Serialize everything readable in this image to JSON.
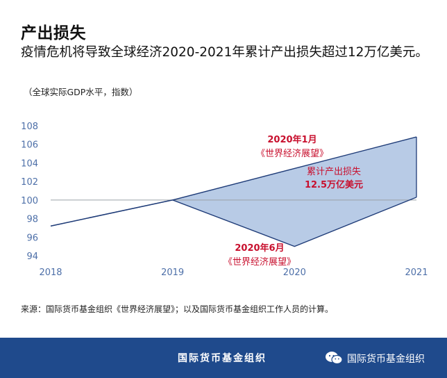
{
  "header": {
    "title": "产出损失",
    "subtitle": "疫情危机将导致全球经济2020-2021年累计产出损失超过12万亿美元。",
    "unit_note": "（全球实际GDP水平，指数）"
  },
  "chart_data": {
    "type": "line",
    "x": [
      2018,
      2019,
      2020,
      2021
    ],
    "ylim": [
      94,
      108
    ],
    "yticks": [
      94,
      96,
      98,
      100,
      102,
      104,
      106,
      108
    ],
    "xticks": [
      "2018",
      "2019",
      "2020",
      "2021"
    ],
    "reference_line": 100,
    "series": [
      {
        "name": "2020年1月《世界经济展望》",
        "values": [
          97.2,
          100.0,
          103.4,
          106.8
        ]
      },
      {
        "name": "2020年6月《世界经济展望》",
        "values": [
          97.2,
          100.0,
          95.0,
          100.3
        ]
      }
    ],
    "fill_between_from": 2019,
    "annotations": {
      "jan_line1": "2020年1月",
      "jan_line2": "《世界经济展望》",
      "jun_line1": "2020年6月",
      "jun_line2": "《世界经济展望》",
      "loss_line1": "累计产出损失",
      "loss_line2": "12.5万亿美元"
    },
    "colors": {
      "line": "#1f3c78",
      "fill": "#b8cbe6",
      "reference": "#9aa0a6",
      "annotation_red": "#c8102e",
      "axis_text": "#4d6fa8"
    }
  },
  "source": "来源：国际货币基金组织《世界经济展望》；以及国际货币基金组织工作人员的计算。",
  "footer": {
    "org_name": "国际货币基金组织",
    "account_name": "国际货币基金组织",
    "icon": "wechat-icon",
    "background": "#1f4a8c"
  }
}
